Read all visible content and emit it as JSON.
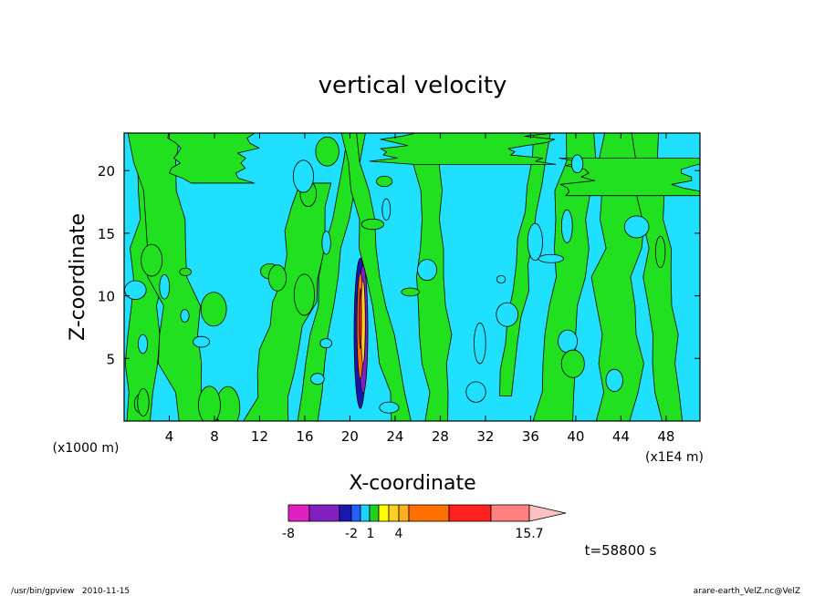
{
  "chart_data": {
    "type": "heatmap",
    "title": "vertical velocity",
    "xlabel": "X-coordinate",
    "ylabel": "Z-coordinate",
    "x_unit": "(x1E4 m)",
    "y_unit": "(x1000 m)",
    "xlim": [
      0,
      51
    ],
    "ylim": [
      0,
      23
    ],
    "x_ticks": [
      4,
      8,
      12,
      16,
      20,
      24,
      28,
      32,
      36,
      40,
      44,
      48
    ],
    "y_ticks": [
      5,
      10,
      15,
      20
    ],
    "contour_levels": [
      -8,
      -7,
      -6,
      -5,
      -4,
      -3,
      -2,
      -1,
      0,
      1,
      2,
      3,
      4,
      6,
      8,
      10,
      12
    ],
    "colorbar": {
      "colors": [
        "#e020c0",
        "#8020c0",
        "#1818b0",
        "#2060ff",
        "#20d0ff",
        "#20d020",
        "#ffff00",
        "#ffd020",
        "#ffb020",
        "#ff7000",
        "#ff2020",
        "#ff8080",
        "#ffc0c0"
      ],
      "tick_labels": [
        "-8",
        "-2",
        "1",
        "4",
        "15.7"
      ],
      "max_value": 15.7,
      "extend": "max"
    },
    "dominant_colors": {
      "weak_upward": "#20e020",
      "weak_downward": "#20e0ff",
      "contour": "#000000"
    },
    "features": [
      {
        "x": 21,
        "z_range": [
          1,
          13
        ],
        "description": "narrow strong updraft/downdraft core"
      }
    ]
  },
  "annotations": {
    "time": "t=58800 s",
    "footer_left": "/usr/bin/gpview   2010-11-15",
    "footer_right": "arare-earth_VelZ.nc@VelZ"
  }
}
